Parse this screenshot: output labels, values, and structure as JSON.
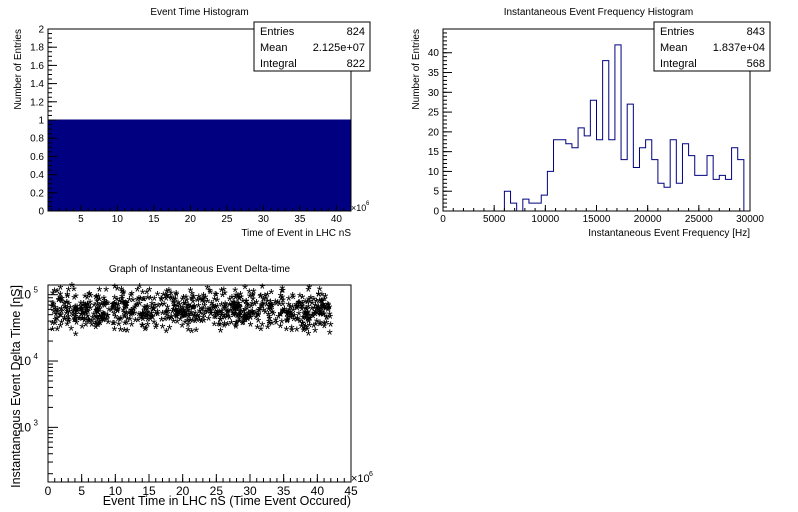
{
  "chart_data": [
    {
      "type": "bar",
      "title": "Event Time Histogram",
      "xlabel": "Time of Event in LHC nS",
      "ylabel": "Number of Entries",
      "x_exponent": "×10",
      "x_exponent_power": "6",
      "xlim": [
        0.5,
        42
      ],
      "ylim": [
        0,
        2
      ],
      "xticks": [
        "5",
        "10",
        "15",
        "20",
        "25",
        "30",
        "35",
        "40"
      ],
      "yticks": [
        "0",
        "0.2",
        "0.4",
        "0.6",
        "0.8",
        "1",
        "1.2",
        "1.4",
        "1.6",
        "1.8",
        "2"
      ],
      "fill_color": "#000080",
      "bins": [
        {
          "x0": 0.5,
          "x1": 42,
          "value": 1
        }
      ],
      "stats": [
        {
          "label": "Entries",
          "value": "824"
        },
        {
          "label": "Mean",
          "value": "2.125e+07"
        },
        {
          "label": "Integral",
          "value": "822"
        }
      ]
    },
    {
      "type": "bar",
      "title": "Instantaneous Event Frequency Histogram",
      "xlabel": "Instantaneous Event Frequency [Hz]",
      "ylabel": "Number of Entries",
      "xlim": [
        0,
        30000
      ],
      "ylim": [
        0,
        46
      ],
      "xticks": [
        "0",
        "5000",
        "10000",
        "15000",
        "20000",
        "25000",
        "30000"
      ],
      "yticks": [
        "0",
        "5",
        "10",
        "15",
        "20",
        "25",
        "30",
        "35",
        "40"
      ],
      "line_color": "#000080",
      "bin_width": 600,
      "bin_start": 6000,
      "values": [
        5,
        2,
        0,
        3,
        2,
        2,
        4,
        10,
        18,
        18,
        17,
        16,
        21,
        19,
        28,
        18,
        38,
        18,
        42,
        13,
        27,
        11,
        16,
        18,
        13,
        7,
        6,
        18,
        7,
        17,
        14,
        9,
        9,
        14,
        8,
        9,
        8,
        16,
        13
      ],
      "stats": [
        {
          "label": "Entries",
          "value": "843"
        },
        {
          "label": "Mean",
          "value": "1.837e+04"
        },
        {
          "label": "Integral",
          "value": "568"
        }
      ]
    },
    {
      "type": "scatter",
      "title": "Graph of Instantaneous Event Delta-time",
      "xlabel": "Event Time in LHC nS (Time Event Occured)",
      "ylabel": "Instantaneous Event Delta Time [nS]",
      "x_exponent": "×10",
      "x_exponent_power": "6",
      "xlim": [
        0,
        45
      ],
      "ylim": [
        150,
        140000
      ],
      "log_y": true,
      "xticks": [
        "0",
        "5",
        "10",
        "15",
        "20",
        "25",
        "30",
        "35",
        "40",
        "45"
      ],
      "yticks": [
        {
          "base": "10",
          "power": "3"
        },
        {
          "base": "10",
          "power": "4"
        },
        {
          "base": "10",
          "power": "5"
        }
      ],
      "marker": "*",
      "point_count": 824,
      "x_range": [
        0.5,
        42
      ],
      "y_range": [
        22000,
        160000
      ]
    }
  ]
}
